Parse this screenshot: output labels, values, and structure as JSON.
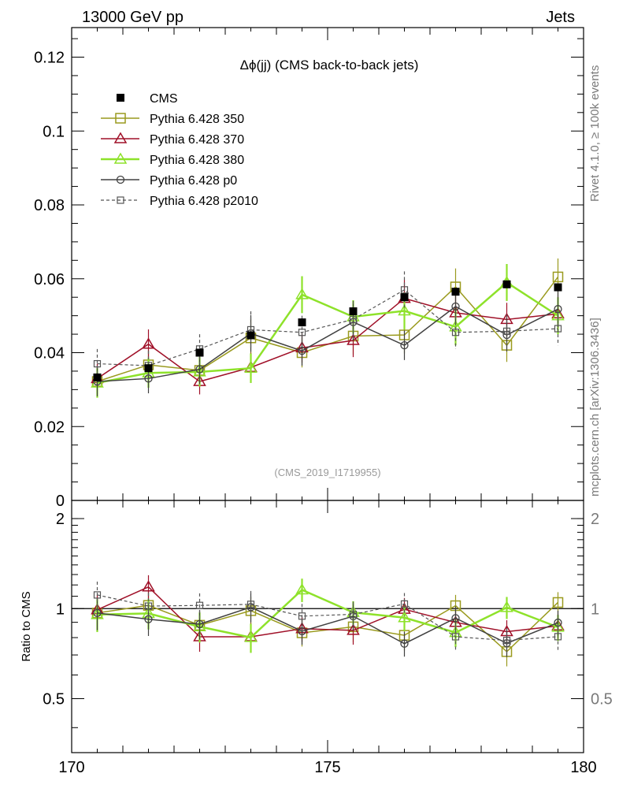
{
  "header": {
    "left": "13000 GeV pp",
    "right": "Jets"
  },
  "side_labels": {
    "rivet": "Rivet 4.1.0, ≥ 100k events",
    "mcplots": "mcplots.cern.ch [arXiv:1306.3436]"
  },
  "chart_data": {
    "type": "scatter",
    "title": "Δϕ(jj) (CMS back-to-back jets)",
    "watermark": "(CMS_2019_I1719955)",
    "xlim": [
      170,
      180
    ],
    "ylim_main": [
      0,
      0.128
    ],
    "ylim_ratio": [
      0.33,
      2.3
    ],
    "x_ticks": [
      "170",
      "175",
      "180"
    ],
    "y_ticks_main": [
      "0",
      "0.02",
      "0.04",
      "0.06",
      "0.08",
      "0.1",
      "0.12"
    ],
    "y_ticks_ratio": [
      "0.5",
      "1",
      "2"
    ],
    "ratio_ylabel": "Ratio to CMS",
    "x": [
      170.5,
      171.5,
      172.5,
      173.5,
      174.5,
      175.5,
      176.5,
      177.5,
      178.5,
      179.5
    ],
    "reference": {
      "name": "CMS",
      "color": "#000000",
      "values": [
        0.0333,
        0.0358,
        0.04,
        0.0447,
        0.0482,
        0.0512,
        0.055,
        0.0565,
        0.0585,
        0.0577
      ],
      "errors": [
        0.0005,
        0.0005,
        0.0005,
        0.0005,
        0.0005,
        0.0005,
        0.0005,
        0.0005,
        0.0005,
        0.0005
      ]
    },
    "series": [
      {
        "name": "Pythia 6.428 350",
        "color": "#9a9a1e",
        "marker": "square-open",
        "dash": "",
        "width": 1.5,
        "values": [
          0.0322,
          0.0367,
          0.0352,
          0.044,
          0.04,
          0.0445,
          0.0448,
          0.0578,
          0.042,
          0.0605
        ],
        "errors": [
          0.004,
          0.004,
          0.004,
          0.005,
          0.004,
          0.005,
          0.005,
          0.005,
          0.0045,
          0.005
        ]
      },
      {
        "name": "Pythia 6.428 370",
        "color": "#a01028",
        "marker": "triangle-open",
        "dash": "",
        "width": 1.5,
        "values": [
          0.033,
          0.0423,
          0.0322,
          0.036,
          0.0413,
          0.0433,
          0.0547,
          0.0508,
          0.049,
          0.0505
        ],
        "errors": [
          0.004,
          0.004,
          0.0035,
          0.004,
          0.004,
          0.0045,
          0.005,
          0.0045,
          0.0045,
          0.005
        ]
      },
      {
        "name": "Pythia 6.428 380",
        "color": "#8ee22a",
        "marker": "triangle-open",
        "dash": "",
        "width": 2.5,
        "values": [
          0.0318,
          0.0345,
          0.0348,
          0.0358,
          0.0557,
          0.0497,
          0.0513,
          0.047,
          0.059,
          0.05
        ],
        "errors": [
          0.004,
          0.004,
          0.004,
          0.004,
          0.005,
          0.0045,
          0.005,
          0.005,
          0.005,
          0.005
        ]
      },
      {
        "name": "Pythia 6.428 p0",
        "color": "#404040",
        "marker": "circle-open",
        "dash": "",
        "width": 1.5,
        "values": [
          0.0322,
          0.033,
          0.0355,
          0.0452,
          0.0405,
          0.0483,
          0.042,
          0.0525,
          0.0448,
          0.0518
        ],
        "errors": [
          0.004,
          0.004,
          0.004,
          0.005,
          0.004,
          0.005,
          0.004,
          0.005,
          0.0045,
          0.005
        ]
      },
      {
        "name": "Pythia 6.428 p2010",
        "color": "#555555",
        "marker": "square-open-small",
        "dash": "4,3",
        "width": 1.2,
        "values": [
          0.037,
          0.0365,
          0.041,
          0.0462,
          0.0455,
          0.049,
          0.057,
          0.0455,
          0.0458,
          0.0465
        ],
        "errors": [
          0.004,
          0.004,
          0.004,
          0.005,
          0.0045,
          0.005,
          0.005,
          0.0045,
          0.0045,
          0.0045
        ]
      }
    ]
  }
}
